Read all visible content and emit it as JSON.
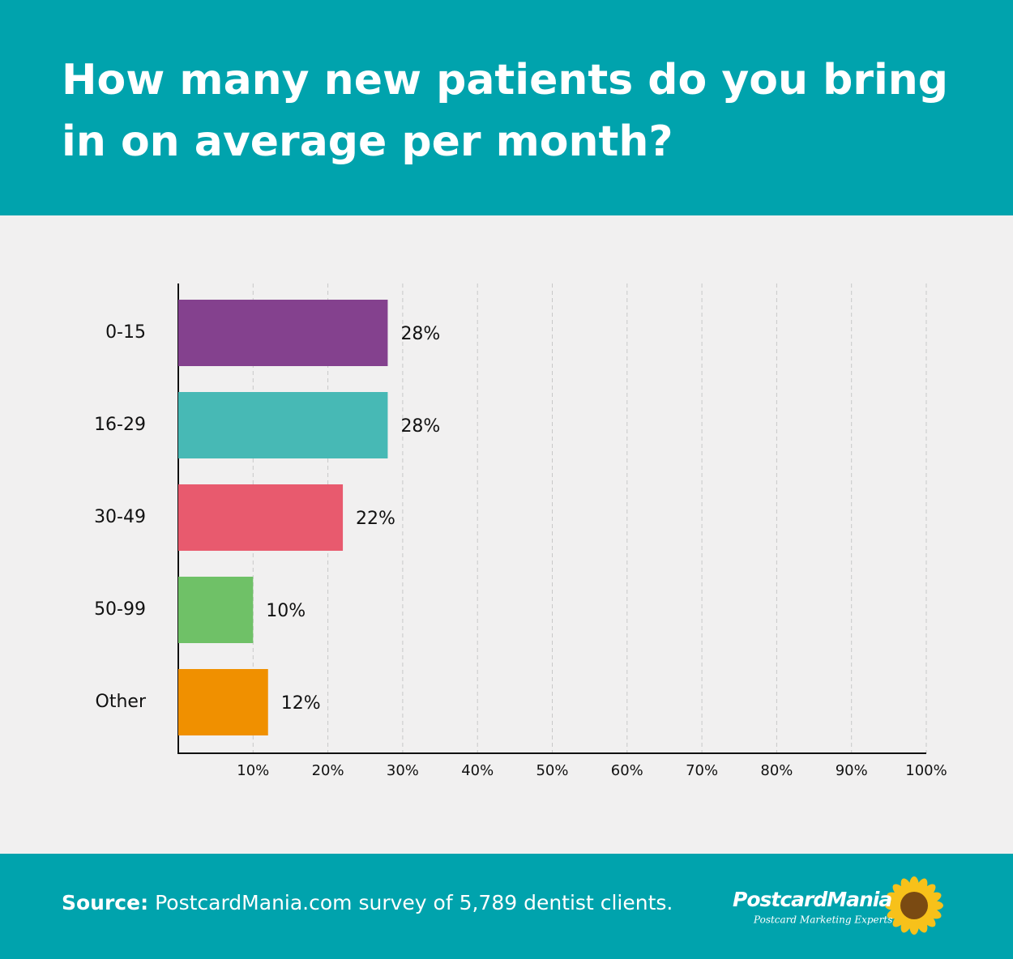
{
  "chart_data": {
    "type": "hbar",
    "title": "How many new patients do you bring in on average per month?",
    "categories": [
      "0-15",
      "16-29",
      "30-49",
      "50-99",
      "Other"
    ],
    "values": [
      28,
      28,
      22,
      10,
      12
    ],
    "value_labels": [
      "28%",
      "28%",
      "22%",
      "10%",
      "12%"
    ],
    "colors": [
      "#84418e",
      "#47b9b5",
      "#e85a6e",
      "#6fc167",
      "#f09000"
    ],
    "xlim": [
      0,
      100
    ],
    "xticks": [
      {
        "value": 10,
        "label": "10%"
      },
      {
        "value": 20,
        "label": "20%"
      },
      {
        "value": 30,
        "label": "30%"
      },
      {
        "value": 40,
        "label": "40%"
      },
      {
        "value": 50,
        "label": "50%"
      },
      {
        "value": 60,
        "label": "60%"
      },
      {
        "value": 70,
        "label": "70%"
      },
      {
        "value": 80,
        "label": "80%"
      },
      {
        "value": 90,
        "label": "90%"
      },
      {
        "value": 100,
        "label": "100%"
      }
    ],
    "grid": true
  },
  "footer": {
    "source_label": "Source:",
    "source_text": "PostcardMania.com survey of 5,789 dentist clients.",
    "logo": "PostcardMania",
    "tagline": "Postcard Marketing Experts"
  }
}
